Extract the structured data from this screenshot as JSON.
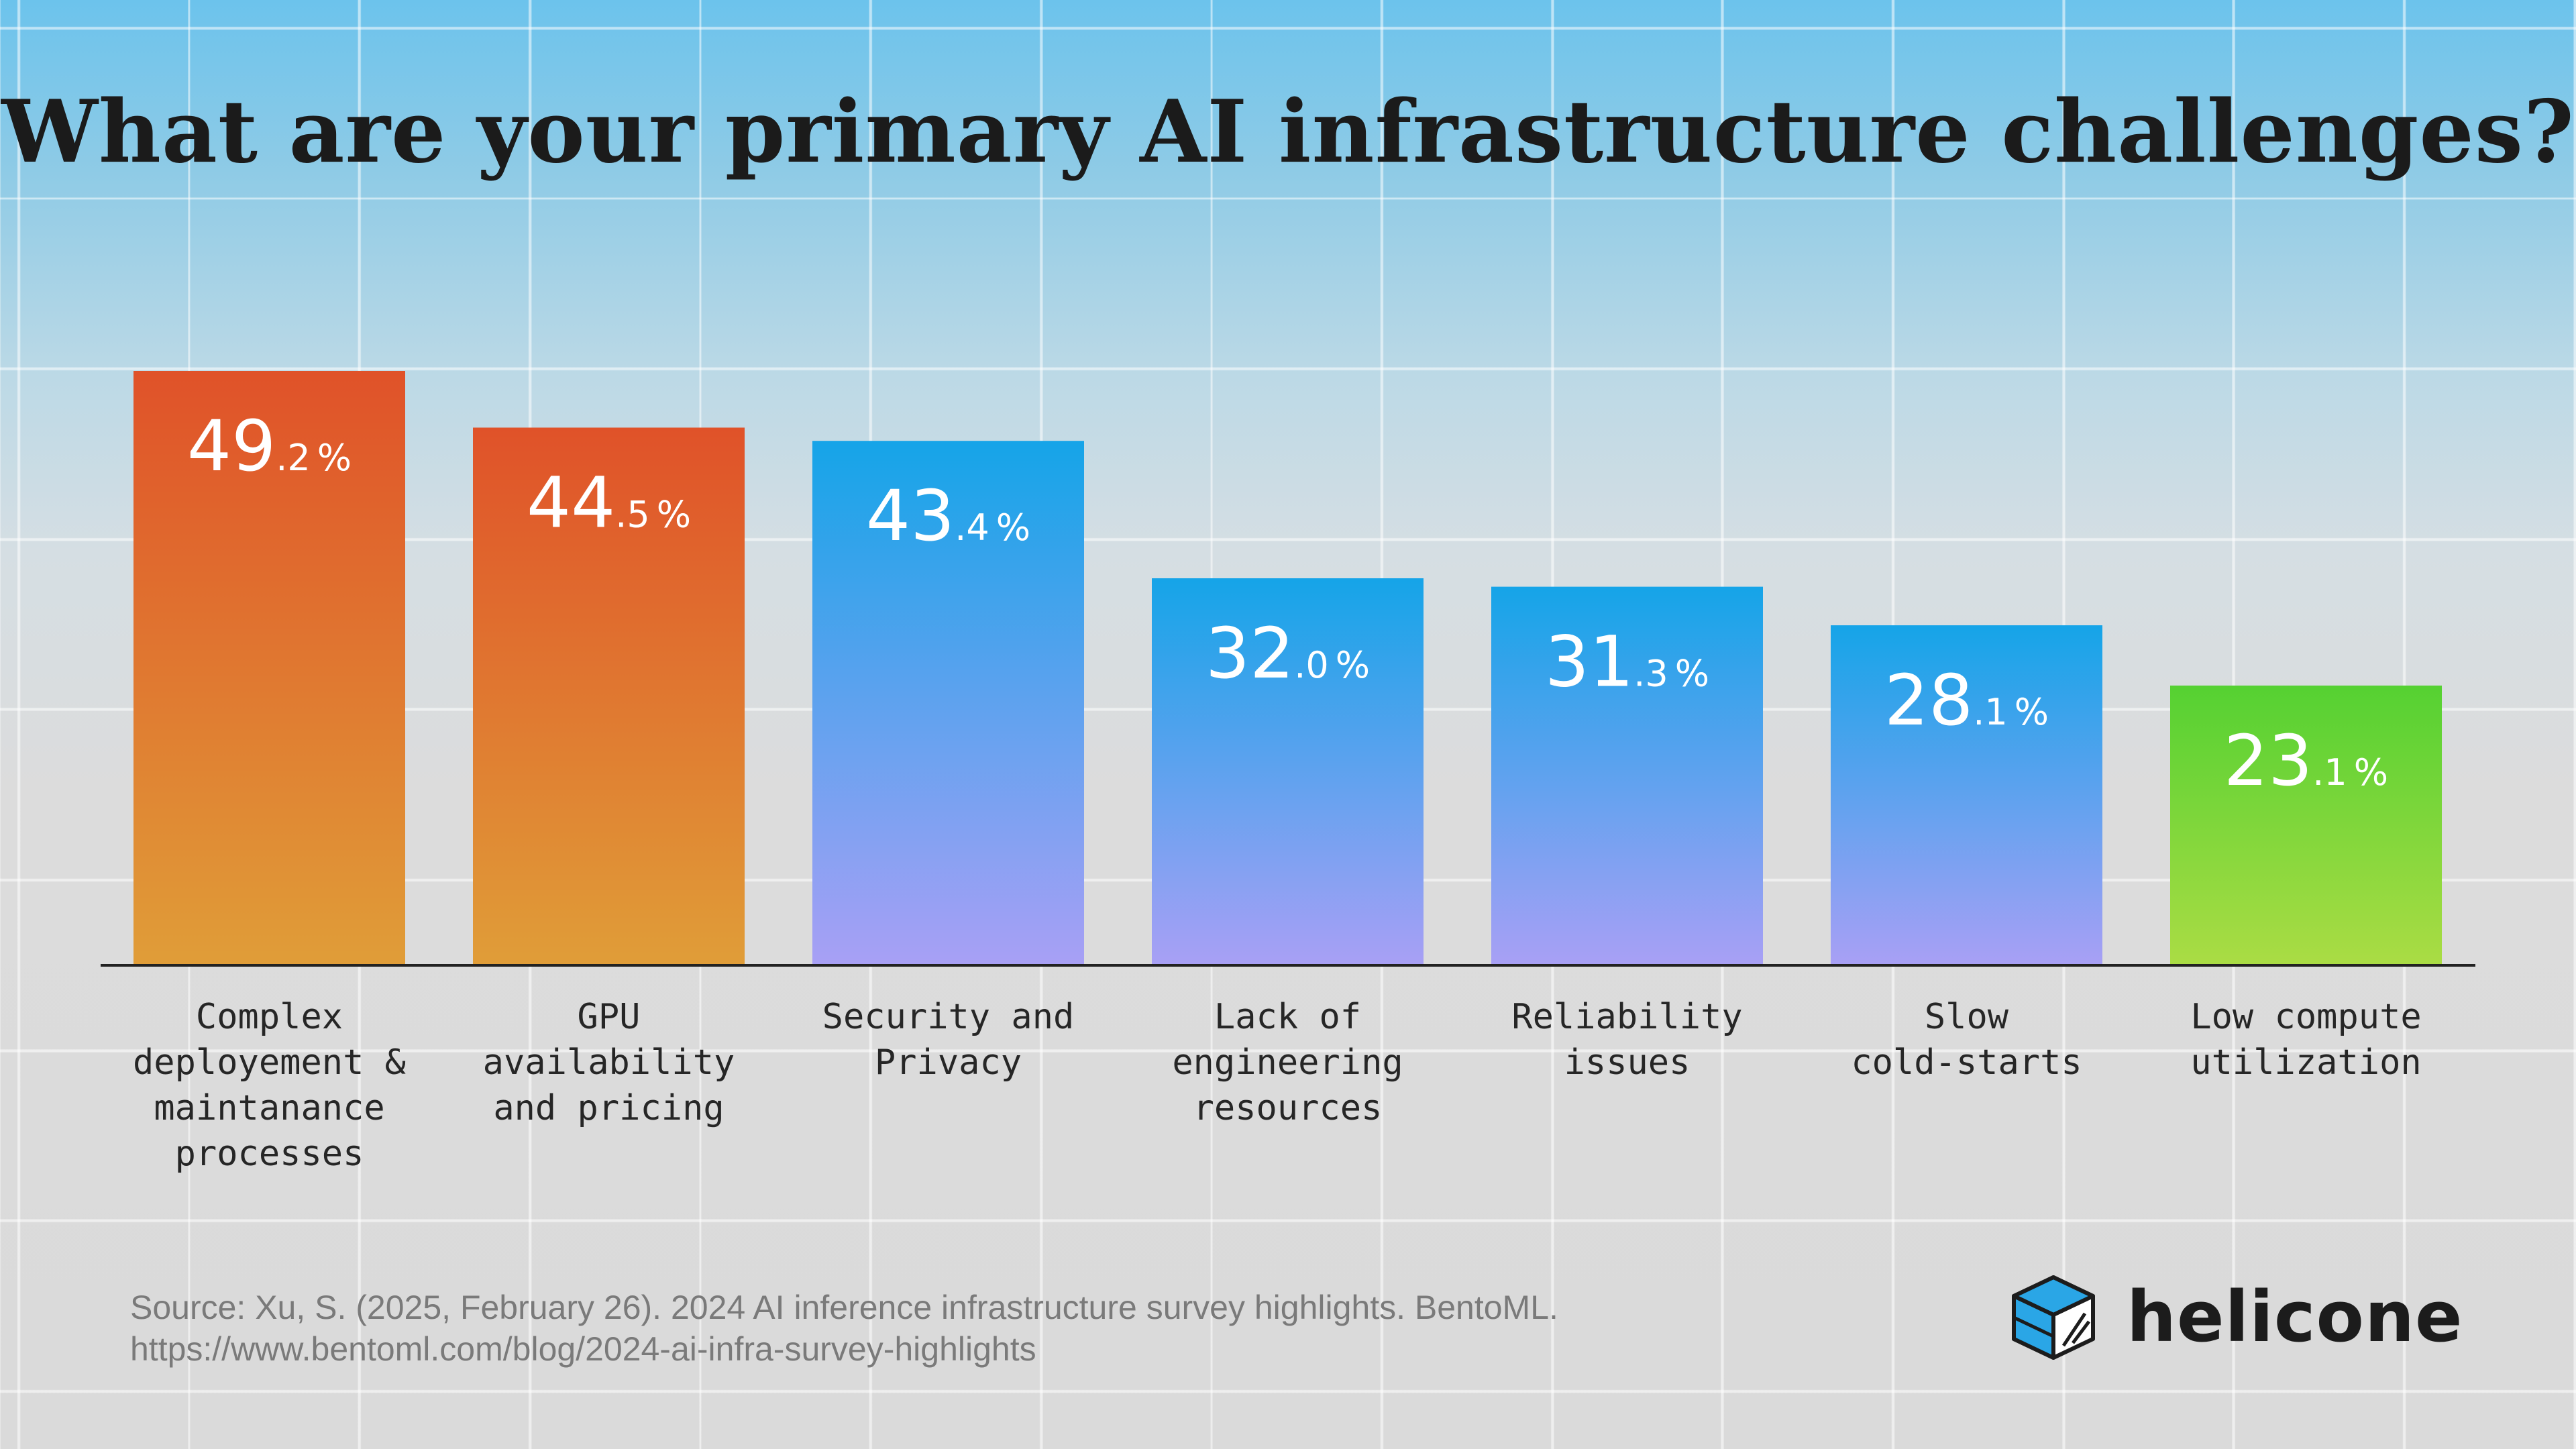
{
  "chart_data": {
    "type": "bar",
    "title": "What are your primary AI infrastructure challenges?",
    "categories": [
      [
        "Complex",
        "deployement &",
        "maintanance",
        "processes"
      ],
      [
        "GPU",
        "availability",
        "and pricing"
      ],
      [
        "Security and",
        "Privacy"
      ],
      [
        "Lack of",
        "engineering",
        "resources"
      ],
      [
        "Reliability",
        "issues"
      ],
      [
        "Slow",
        "cold-starts"
      ],
      [
        "Low compute",
        "utilization"
      ]
    ],
    "values": [
      49.2,
      44.5,
      43.4,
      32.0,
      31.3,
      28.1,
      23.1
    ],
    "value_labels": [
      {
        "int": "49",
        "dec": ".2",
        "unit": "%"
      },
      {
        "int": "44",
        "dec": ".5",
        "unit": "%"
      },
      {
        "int": "43",
        "dec": ".4",
        "unit": "%"
      },
      {
        "int": "32",
        "dec": ".0",
        "unit": "%"
      },
      {
        "int": "31",
        "dec": ".3",
        "unit": "%"
      },
      {
        "int": "28",
        "dec": ".1",
        "unit": "%"
      },
      {
        "int": "23",
        "dec": ".1",
        "unit": "%"
      }
    ],
    "bar_colors": [
      [
        "#e05229",
        "#e09d38"
      ],
      [
        "#e05229",
        "#e09d38"
      ],
      [
        "#15a4e8",
        "#a8a0f5"
      ],
      [
        "#15a4e8",
        "#a8a0f5"
      ],
      [
        "#15a4e8",
        "#a8a0f5"
      ],
      [
        "#15a4e8",
        "#a8a0f5"
      ],
      [
        "#55d132",
        "#aadc44"
      ]
    ],
    "ylim": [
      0,
      49.2
    ],
    "xlabel": "",
    "ylabel": ""
  },
  "source": {
    "line1": "Source: Xu, S. (2025, February 26). 2024 AI inference infrastructure survey highlights. BentoML.",
    "line2": "https://www.bentoml.com/blog/2024-ai-infra-survey-highlights"
  },
  "brand": {
    "name": "helicone",
    "icon": "helicone-cube-icon"
  }
}
